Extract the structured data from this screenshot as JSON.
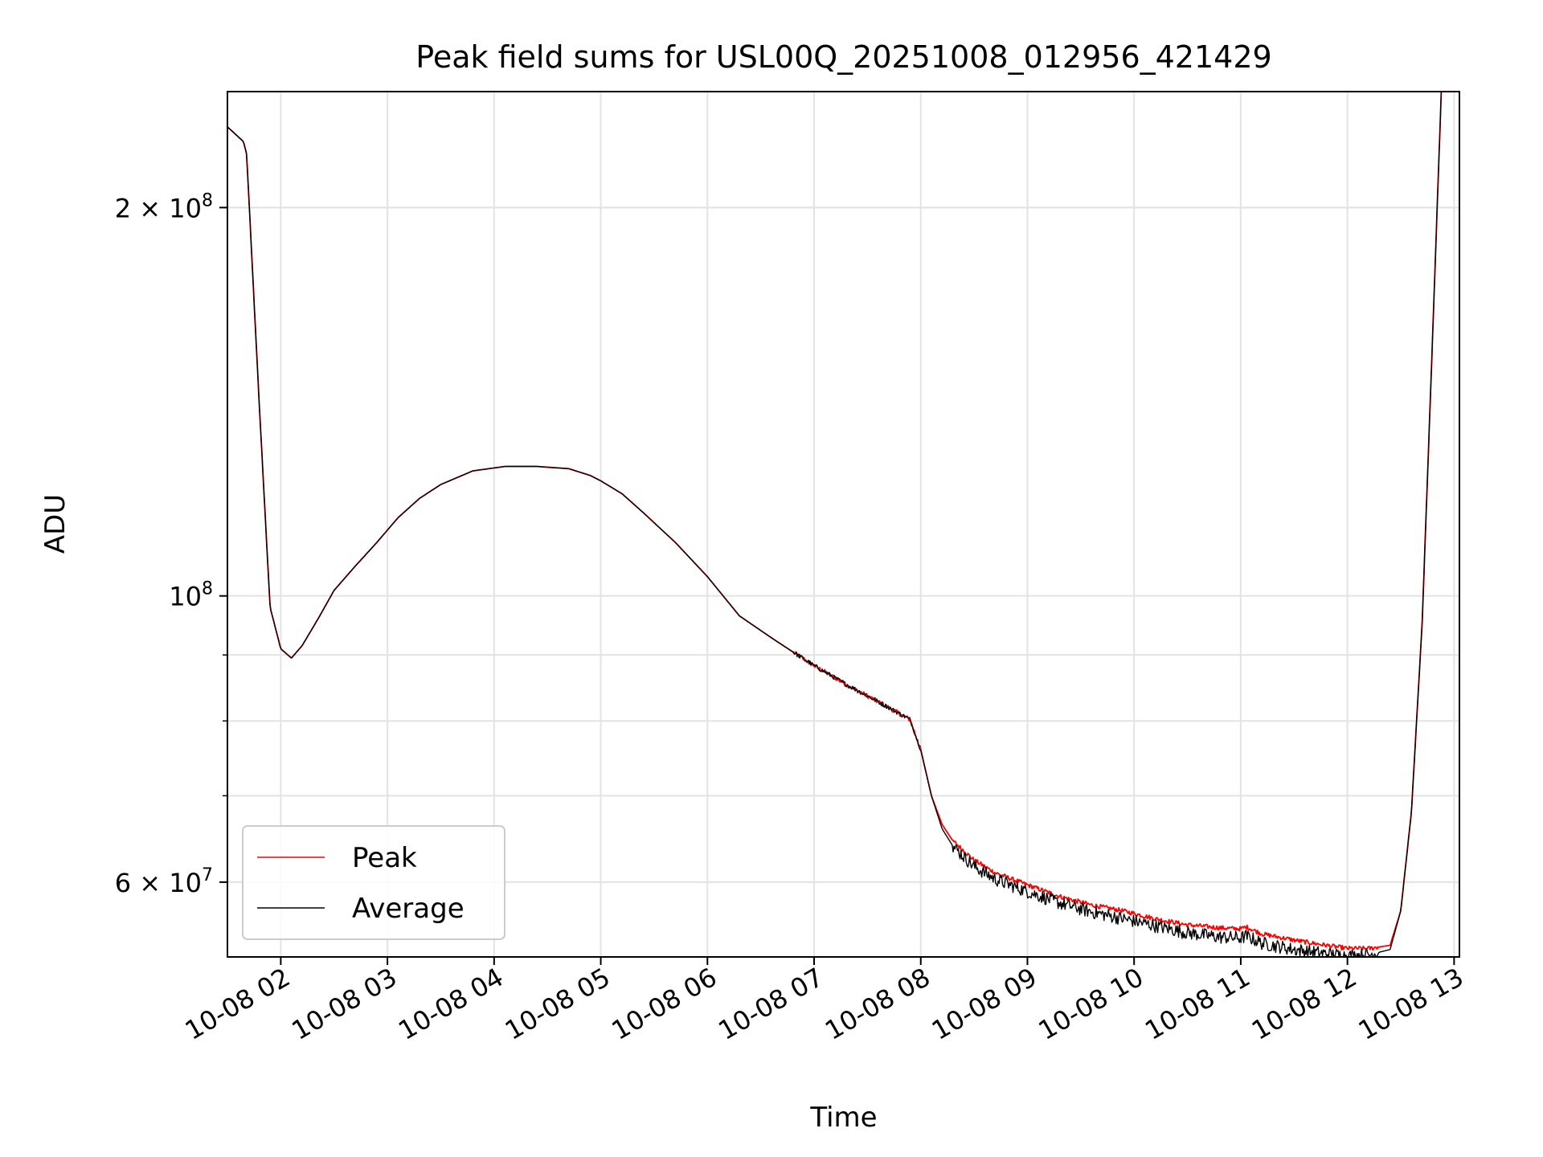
{
  "chart_data": {
    "type": "line",
    "title": "Peak field sums for USL00Q_20251008_012956_421429",
    "xlabel": "Time",
    "ylabel": "ADU",
    "y_scale": "log",
    "ylim": [
      52500000,
      246000000
    ],
    "xlim_hours": [
      1.5,
      13.05
    ],
    "grid": true,
    "legend_position": "lower-left",
    "x_ticks": [
      {
        "hour": 2,
        "label": "10-08 02"
      },
      {
        "hour": 3,
        "label": "10-08 03"
      },
      {
        "hour": 4,
        "label": "10-08 04"
      },
      {
        "hour": 5,
        "label": "10-08 05"
      },
      {
        "hour": 6,
        "label": "10-08 06"
      },
      {
        "hour": 7,
        "label": "10-08 07"
      },
      {
        "hour": 8,
        "label": "10-08 08"
      },
      {
        "hour": 9,
        "label": "10-08 09"
      },
      {
        "hour": 10,
        "label": "10-08 10"
      },
      {
        "hour": 11,
        "label": "10-08 11"
      },
      {
        "hour": 12,
        "label": "10-08 12"
      },
      {
        "hour": 13,
        "label": "10-08 13"
      }
    ],
    "y_major_ticks": [
      {
        "value": 100000000,
        "mantissa": "",
        "base": "10",
        "exp": "8"
      },
      {
        "value": 200000000,
        "mantissa": "2 × ",
        "base": "10",
        "exp": "8"
      },
      {
        "value": 60000000,
        "mantissa": "6 × ",
        "base": "10",
        "exp": "7"
      }
    ],
    "y_minor_ticks": [
      60000000,
      70000000,
      80000000,
      90000000,
      200000000
    ],
    "x_unit": "hour of day (2025-10-08)",
    "series": [
      {
        "name": "Peak",
        "color": "#ff0000",
        "x": [
          1.5,
          1.65,
          1.68,
          1.8,
          1.9,
          2.0,
          2.1,
          2.2,
          2.35,
          2.5,
          2.7,
          2.9,
          3.1,
          3.3,
          3.5,
          3.8,
          4.1,
          4.4,
          4.7,
          4.9,
          5.0,
          5.2,
          5.4,
          5.7,
          6.0,
          6.3,
          6.6,
          6.8,
          7.0,
          7.3,
          7.6,
          7.9,
          8.0,
          8.1,
          8.2,
          8.3,
          8.5,
          8.7,
          9.0,
          9.3,
          9.6,
          9.9,
          10.2,
          10.5,
          10.8,
          11.0,
          11.05,
          11.2,
          11.5,
          11.8,
          12.0,
          12.2,
          12.4,
          12.5,
          12.6,
          12.7,
          12.8,
          12.88
        ],
        "y": [
          231000000,
          225000000,
          220000000,
          140000000,
          98000000,
          91000000,
          89500000,
          91500000,
          96000000,
          101000000,
          105500000,
          110000000,
          115000000,
          119000000,
          122000000,
          125000000,
          126000000,
          126000000,
          125500000,
          124000000,
          122800000,
          120000000,
          116000000,
          110000000,
          103500000,
          96500000,
          92800000,
          90500000,
          88300000,
          85400000,
          82800000,
          80200000,
          76000000,
          70000000,
          66500000,
          64600000,
          62400000,
          61000000,
          59700000,
          58500000,
          57600000,
          57000000,
          56200000,
          55600000,
          55300000,
          55200000,
          55400000,
          54700000,
          54100000,
          53600000,
          53300000,
          53300000,
          53600000,
          57000000,
          68000000,
          95000000,
          160000000,
          246000000
        ]
      },
      {
        "name": "Average",
        "color": "#000000",
        "x": [
          1.5,
          1.65,
          1.68,
          1.8,
          1.9,
          2.0,
          2.1,
          2.2,
          2.35,
          2.5,
          2.7,
          2.9,
          3.1,
          3.3,
          3.5,
          3.8,
          4.1,
          4.4,
          4.7,
          4.9,
          5.0,
          5.2,
          5.4,
          5.7,
          6.0,
          6.3,
          6.6,
          6.8,
          7.0,
          7.3,
          7.6,
          7.9,
          8.0,
          8.1,
          8.2,
          8.3,
          8.5,
          8.7,
          9.0,
          9.3,
          9.6,
          9.9,
          10.2,
          10.5,
          10.8,
          11.0,
          11.05,
          11.2,
          11.5,
          11.8,
          12.0,
          12.2,
          12.4,
          12.5,
          12.6,
          12.7,
          12.8,
          12.88
        ],
        "y": [
          231000000,
          225000000,
          220000000,
          140000000,
          98000000,
          91000000,
          89500000,
          91500000,
          96000000,
          101000000,
          105500000,
          110000000,
          115000000,
          119000000,
          122000000,
          125000000,
          126000000,
          126000000,
          125500000,
          124000000,
          122800000,
          120000000,
          116000000,
          110000000,
          103500000,
          96500000,
          92800000,
          90500000,
          88300000,
          85400000,
          82800000,
          80200000,
          76000000,
          70000000,
          66000000,
          64000000,
          61700000,
          60300000,
          59000000,
          57800000,
          56900000,
          56200000,
          55500000,
          54800000,
          54400000,
          54300000,
          54500000,
          53800000,
          53200000,
          52800000,
          52600000,
          52700000,
          53200000,
          57000000,
          68000000,
          95000000,
          160000000,
          246000000
        ]
      }
    ]
  }
}
